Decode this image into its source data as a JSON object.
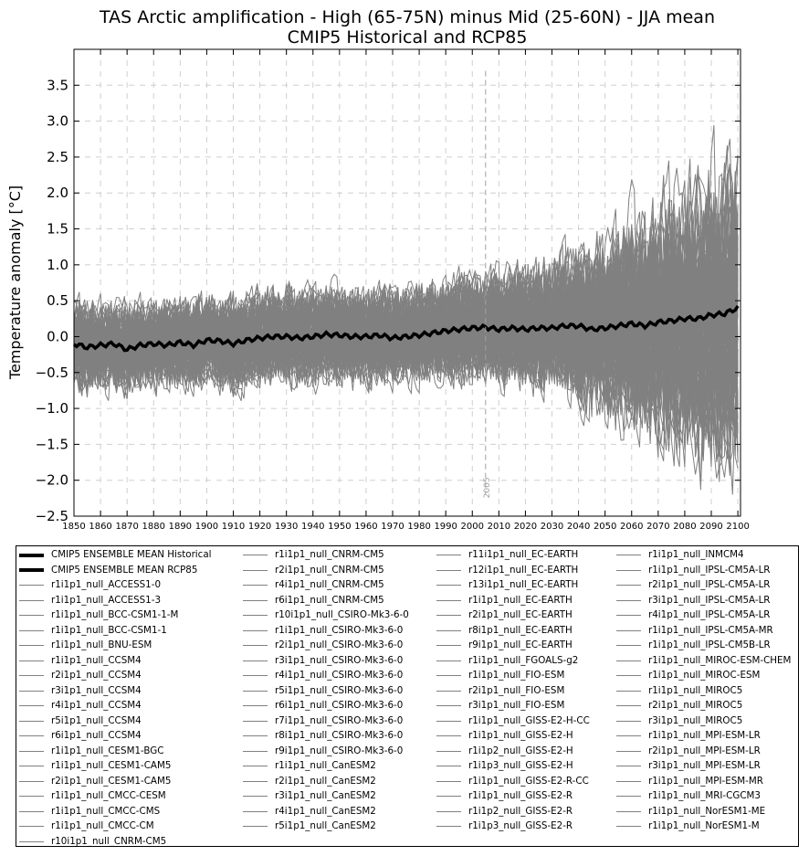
{
  "chart_data": {
    "type": "line",
    "title": "TAS Arctic amplification - High (65-75N) minus Mid (25-60N) - JJA mean",
    "subtitle": "CMIP5 Historical and RCP85",
    "xlabel": "",
    "ylabel": "Temperature anomaly [°C]",
    "xlim": [
      1850,
      2101
    ],
    "ylim": [
      -2.5,
      4.0
    ],
    "x_ticks": [
      1850,
      1860,
      1870,
      1880,
      1890,
      1900,
      1910,
      1920,
      1930,
      1940,
      1950,
      1960,
      1970,
      1980,
      1990,
      2000,
      2010,
      2020,
      2030,
      2040,
      2050,
      2060,
      2070,
      2080,
      2090,
      2100
    ],
    "y_ticks": [
      -2.5,
      -2.0,
      -1.5,
      -1.0,
      -0.5,
      0.0,
      0.5,
      1.0,
      1.5,
      2.0,
      2.5,
      3.0,
      3.5
    ],
    "y_tick_labels": [
      "−2.5",
      "−2.0",
      "−1.5",
      "−1.0",
      "−0.5",
      "0.0",
      "0.5",
      "1.0",
      "1.5",
      "2.0",
      "2.5",
      "3.0",
      "3.5"
    ],
    "grid": true,
    "vline": {
      "x": 2005,
      "label": "2005"
    },
    "legend_position": "below",
    "series_color_members": "#808080",
    "series_color_mean": "#000000",
    "ensemble_mean": {
      "x": [
        1850,
        1855,
        1860,
        1865,
        1870,
        1875,
        1880,
        1885,
        1890,
        1895,
        1900,
        1905,
        1910,
        1915,
        1920,
        1925,
        1930,
        1935,
        1940,
        1945,
        1950,
        1955,
        1960,
        1965,
        1970,
        1975,
        1980,
        1985,
        1990,
        1995,
        2000,
        2005,
        2010,
        2015,
        2020,
        2025,
        2030,
        2035,
        2040,
        2045,
        2050,
        2055,
        2060,
        2065,
        2070,
        2075,
        2080,
        2085,
        2090,
        2095,
        2100
      ],
      "y": [
        -0.1,
        -0.15,
        -0.12,
        -0.1,
        -0.18,
        -0.12,
        -0.1,
        -0.12,
        -0.08,
        -0.12,
        -0.05,
        -0.06,
        -0.1,
        -0.05,
        -0.02,
        0.0,
        0.0,
        -0.02,
        0.0,
        0.03,
        0.02,
        0.0,
        0.0,
        0.02,
        -0.02,
        0.0,
        0.02,
        0.05,
        0.08,
        0.1,
        0.12,
        0.13,
        0.1,
        0.12,
        0.1,
        0.12,
        0.12,
        0.15,
        0.15,
        0.1,
        0.12,
        0.15,
        0.18,
        0.15,
        0.2,
        0.22,
        0.25,
        0.25,
        0.3,
        0.32,
        0.4
      ]
    },
    "members_envelope": {
      "x": [
        1850,
        1870,
        1890,
        1910,
        1930,
        1950,
        1970,
        1990,
        2005,
        2020,
        2030,
        2040,
        2050,
        2060,
        2070,
        2080,
        2090,
        2100
      ],
      "upper": [
        0.6,
        0.6,
        0.6,
        0.7,
        0.75,
        0.7,
        0.75,
        0.8,
        0.9,
        1.0,
        1.2,
        1.3,
        1.4,
        1.6,
        1.8,
        2.0,
        2.1,
        2.2
      ],
      "lower": [
        -0.8,
        -0.8,
        -0.8,
        -0.8,
        -0.8,
        -0.85,
        -0.85,
        -0.9,
        -0.9,
        -0.95,
        -1.0,
        -1.1,
        -1.3,
        -1.5,
        -1.6,
        -1.7,
        -1.8,
        -1.9
      ]
    },
    "legend": [
      [
        "CMIP5 ENSEMBLE MEAN Historical",
        "CMIP5 ENSEMBLE MEAN RCP85",
        "r1i1p1_null_ACCESS1-0",
        "r1i1p1_null_ACCESS1-3",
        "r1i1p1_null_BCC-CSM1-1-M",
        "r1i1p1_null_BCC-CSM1-1",
        "r1i1p1_null_BNU-ESM",
        "r1i1p1_null_CCSM4",
        "r2i1p1_null_CCSM4",
        "r3i1p1_null_CCSM4",
        "r4i1p1_null_CCSM4",
        "r5i1p1_null_CCSM4",
        "r6i1p1_null_CCSM4",
        "r1i1p1_null_CESM1-BGC",
        "r1i1p1_null_CESM1-CAM5",
        "r2i1p1_null_CESM1-CAM5",
        "r1i1p1_null_CMCC-CESM",
        "r1i1p1_null_CMCC-CMS",
        "r1i1p1_null_CMCC-CM",
        "r10i1p1_null_CNRM-CM5"
      ],
      [
        "r1i1p1_null_CNRM-CM5",
        "r2i1p1_null_CNRM-CM5",
        "r4i1p1_null_CNRM-CM5",
        "r6i1p1_null_CNRM-CM5",
        "r10i1p1_null_CSIRO-Mk3-6-0",
        "r1i1p1_null_CSIRO-Mk3-6-0",
        "r2i1p1_null_CSIRO-Mk3-6-0",
        "r3i1p1_null_CSIRO-Mk3-6-0",
        "r4i1p1_null_CSIRO-Mk3-6-0",
        "r5i1p1_null_CSIRO-Mk3-6-0",
        "r6i1p1_null_CSIRO-Mk3-6-0",
        "r7i1p1_null_CSIRO-Mk3-6-0",
        "r8i1p1_null_CSIRO-Mk3-6-0",
        "r9i1p1_null_CSIRO-Mk3-6-0",
        "r1i1p1_null_CanESM2",
        "r2i1p1_null_CanESM2",
        "r3i1p1_null_CanESM2",
        "r4i1p1_null_CanESM2",
        "r5i1p1_null_CanESM2"
      ],
      [
        "r11i1p1_null_EC-EARTH",
        "r12i1p1_null_EC-EARTH",
        "r13i1p1_null_EC-EARTH",
        "r1i1p1_null_EC-EARTH",
        "r2i1p1_null_EC-EARTH",
        "r8i1p1_null_EC-EARTH",
        "r9i1p1_null_EC-EARTH",
        "r1i1p1_null_FGOALS-g2",
        "r1i1p1_null_FIO-ESM",
        "r2i1p1_null_FIO-ESM",
        "r3i1p1_null_FIO-ESM",
        "r1i1p1_null_GISS-E2-H-CC",
        "r1i1p1_null_GISS-E2-H",
        "r1i1p2_null_GISS-E2-H",
        "r1i1p3_null_GISS-E2-H",
        "r1i1p1_null_GISS-E2-R-CC",
        "r1i1p1_null_GISS-E2-R",
        "r1i1p2_null_GISS-E2-R",
        "r1i1p3_null_GISS-E2-R"
      ],
      [
        "r1i1p1_null_INMCM4",
        "r1i1p1_null_IPSL-CM5A-LR",
        "r2i1p1_null_IPSL-CM5A-LR",
        "r3i1p1_null_IPSL-CM5A-LR",
        "r4i1p1_null_IPSL-CM5A-LR",
        "r1i1p1_null_IPSL-CM5A-MR",
        "r1i1p1_null_IPSL-CM5B-LR",
        "r1i1p1_null_MIROC-ESM-CHEM",
        "r1i1p1_null_MIROC-ESM",
        "r1i1p1_null_MIROC5",
        "r2i1p1_null_MIROC5",
        "r3i1p1_null_MIROC5",
        "r1i1p1_null_MPI-ESM-LR",
        "r2i1p1_null_MPI-ESM-LR",
        "r3i1p1_null_MPI-ESM-LR",
        "r1i1p1_null_MPI-ESM-MR",
        "r1i1p1_null_MRI-CGCM3",
        "r1i1p1_null_NorESM1-ME",
        "r1i1p1_null_NorESM1-M"
      ]
    ]
  }
}
